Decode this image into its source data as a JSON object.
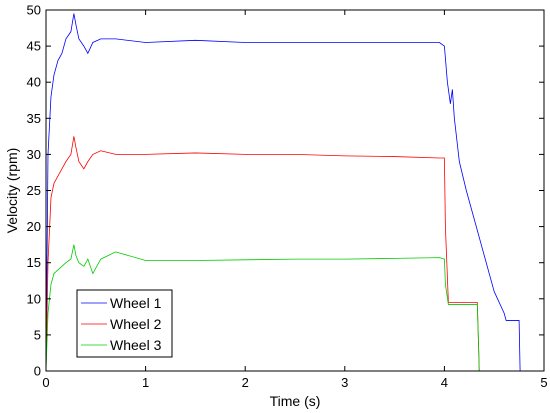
{
  "chart_data": {
    "type": "line",
    "title": "",
    "xlabel": "Time (s)",
    "ylabel": "Velocity (rpm)",
    "xlim": [
      0,
      5
    ],
    "ylim": [
      0,
      50
    ],
    "xticks": [
      0,
      1,
      2,
      3,
      4,
      5
    ],
    "yticks": [
      0,
      5,
      10,
      15,
      20,
      25,
      30,
      35,
      40,
      45,
      50
    ],
    "xtick_labels": [
      "0",
      "1",
      "2",
      "3",
      "4",
      "5"
    ],
    "ytick_labels": [
      "0",
      "5",
      "10",
      "15",
      "20",
      "25",
      "30",
      "35",
      "40",
      "45",
      "50"
    ],
    "grid": false,
    "legend_position": "bottom-left",
    "series": [
      {
        "name": "Wheel 1",
        "color": "#0000ff",
        "x": [
          0,
          0.02,
          0.05,
          0.08,
          0.12,
          0.16,
          0.2,
          0.25,
          0.28,
          0.3,
          0.33,
          0.38,
          0.42,
          0.47,
          0.55,
          0.7,
          1.0,
          1.5,
          2.0,
          2.5,
          3.0,
          3.5,
          3.95,
          4.0,
          4.03,
          4.06,
          4.08,
          4.1,
          4.15,
          4.22,
          4.3,
          4.4,
          4.5,
          4.6,
          4.62,
          4.7,
          4.75,
          4.76
        ],
        "y": [
          0,
          30,
          38,
          41,
          43,
          44,
          46,
          47,
          49.5,
          48,
          46,
          45,
          44,
          45.5,
          46,
          46,
          45.5,
          45.8,
          45.5,
          45.5,
          45.5,
          45.5,
          45.5,
          45,
          40,
          37,
          39,
          35,
          29,
          25,
          21,
          16,
          11,
          8,
          7,
          7,
          7,
          0
        ]
      },
      {
        "name": "Wheel 2",
        "color": "#ff0000",
        "x": [
          0,
          0.02,
          0.05,
          0.08,
          0.12,
          0.16,
          0.2,
          0.25,
          0.28,
          0.3,
          0.33,
          0.38,
          0.42,
          0.47,
          0.55,
          0.7,
          1.0,
          1.5,
          2.0,
          2.5,
          3.0,
          3.5,
          3.95,
          4.0,
          4.01,
          4.04,
          4.1,
          4.2,
          4.3,
          4.33,
          4.34,
          4.35
        ],
        "y": [
          0,
          15,
          24,
          26,
          27,
          28,
          29,
          30,
          32.5,
          31,
          29,
          28,
          29,
          30,
          30.5,
          30,
          30,
          30.2,
          30,
          30,
          29.8,
          29.7,
          29.5,
          29.5,
          20,
          9.5,
          9.5,
          9.5,
          9.5,
          9.5,
          5,
          0
        ]
      },
      {
        "name": "Wheel 3",
        "color": "#00cc00",
        "x": [
          0,
          0.02,
          0.05,
          0.08,
          0.12,
          0.16,
          0.2,
          0.25,
          0.28,
          0.3,
          0.33,
          0.38,
          0.42,
          0.47,
          0.55,
          0.7,
          1.0,
          1.5,
          2.0,
          2.5,
          3.0,
          3.5,
          3.95,
          4.0,
          4.01,
          4.04,
          4.1,
          4.2,
          4.3,
          4.33,
          4.34,
          4.35
        ],
        "y": [
          0,
          8,
          12,
          13.5,
          14,
          14.5,
          15,
          15.5,
          17.5,
          16,
          15,
          14.5,
          15.5,
          13.5,
          15.5,
          16.5,
          15.3,
          15.3,
          15.4,
          15.5,
          15.5,
          15.6,
          15.7,
          15.5,
          12,
          9.2,
          9.2,
          9.2,
          9.2,
          9.2,
          5,
          0
        ]
      }
    ]
  }
}
